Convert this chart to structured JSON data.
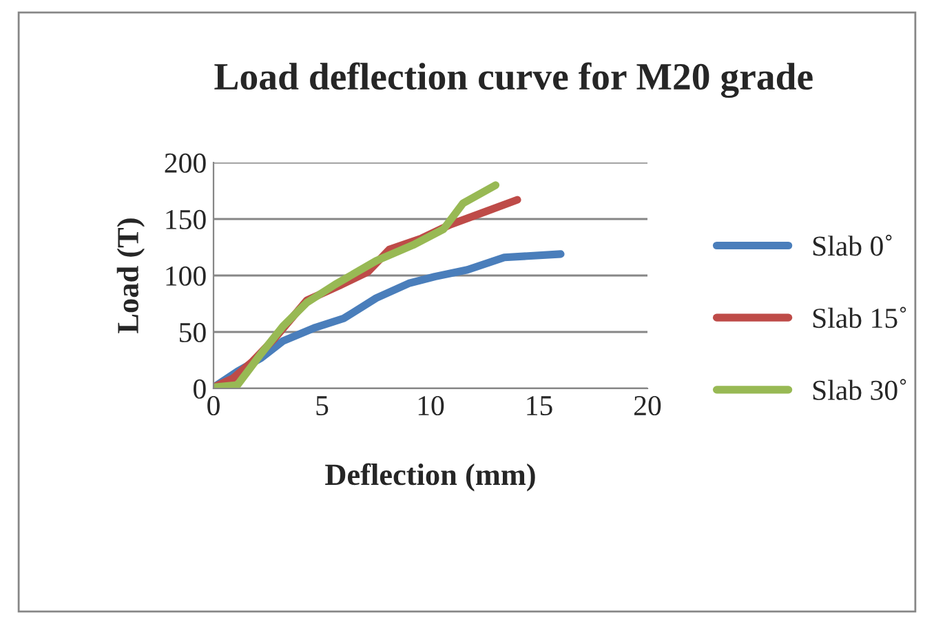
{
  "chart_data": {
    "type": "line",
    "title": "Load deflection curve for M20 grade",
    "xlabel": "Deflection (mm)",
    "ylabel": "Load (T)",
    "xlim": [
      0,
      20
    ],
    "xticks": [
      0,
      5,
      10,
      15,
      20
    ],
    "ylim": [
      0,
      200
    ],
    "yticks": [
      0,
      50,
      100,
      150,
      200
    ],
    "grid": "y",
    "legend": "right",
    "series": [
      {
        "name": "Slab 0˚",
        "color": "#4a7ebb",
        "x": [
          0,
          1.1,
          2.2,
          3.2,
          4.7,
          6.0,
          7.5,
          9.0,
          10.2,
          11.7,
          13.4,
          16.0
        ],
        "values": [
          1,
          15,
          27,
          42,
          54,
          62,
          80,
          93,
          99,
          105,
          116,
          119
        ]
      },
      {
        "name": "Slab 15˚",
        "color": "#be4b48",
        "x": [
          0,
          0.9,
          1.8,
          2.8,
          4.3,
          5.8,
          7.1,
          8.1,
          9.6,
          10.9,
          12.6,
          14.0
        ],
        "values": [
          1,
          9,
          24,
          44,
          78,
          91,
          103,
          123,
          133,
          145,
          157,
          167
        ]
      },
      {
        "name": "Slab 30˚",
        "color": "#98b954",
        "x": [
          0,
          1.1,
          2.2,
          3.2,
          4.3,
          5.6,
          7.5,
          9.2,
          10.6,
          11.5,
          13.0
        ],
        "values": [
          1,
          3,
          31,
          55,
          76,
          92,
          113,
          127,
          141,
          164,
          180
        ]
      }
    ]
  }
}
